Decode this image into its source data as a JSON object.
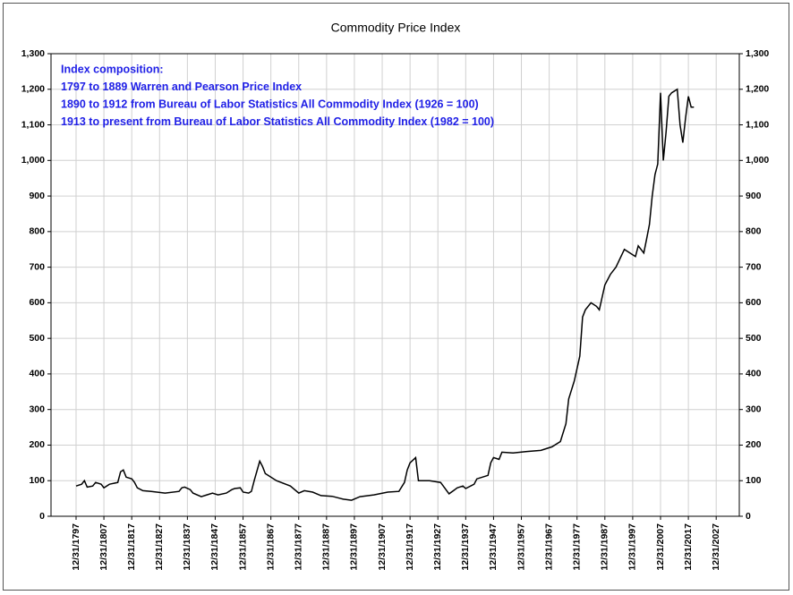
{
  "chart_data": {
    "type": "line",
    "title": "Commodity Price Index",
    "annotations": [
      "Index composition:",
      "1797 to 1889  Warren and Pearson Price Index",
      "1890 to 1912 from Bureau of Labor Statistics All Commodity Index (1926 = 100)",
      "1913 to present from  Bureau of Labor Statistics All Commodity Index  (1982 = 100)"
    ],
    "color": "#000000",
    "grid": true,
    "x": [
      1798,
      1800,
      1801,
      1802,
      1804,
      1805,
      1807,
      1808,
      1810,
      1813,
      1814,
      1815,
      1816,
      1818,
      1819,
      1820,
      1822,
      1825,
      1830,
      1835,
      1836,
      1837,
      1839,
      1840,
      1843,
      1845,
      1847,
      1849,
      1852,
      1854,
      1855,
      1857,
      1858,
      1860,
      1861,
      1862,
      1864,
      1865,
      1866,
      1870,
      1875,
      1878,
      1880,
      1883,
      1886,
      1890,
      1894,
      1897,
      1900,
      1905,
      1910,
      1914,
      1916,
      1917,
      1918,
      1920,
      1921,
      1925,
      1929,
      1932,
      1935,
      1937,
      1938,
      1941,
      1942,
      1946,
      1947,
      1948,
      1950,
      1951,
      1955,
      1960,
      1965,
      1969,
      1972,
      1974,
      1975,
      1977,
      1979,
      1980,
      1981,
      1983,
      1985,
      1986,
      1988,
      1990,
      1992,
      1995,
      1997,
      1999,
      2000,
      2002,
      2003,
      2004,
      2005,
      2006,
      2007,
      2008,
      2009,
      2010,
      2011,
      2012,
      2013,
      2014,
      2015,
      2016,
      2017,
      2018,
      2019,
      2020
    ],
    "values": [
      85,
      90,
      100,
      82,
      85,
      95,
      90,
      80,
      90,
      95,
      125,
      130,
      110,
      105,
      95,
      80,
      72,
      70,
      65,
      70,
      80,
      82,
      75,
      65,
      55,
      60,
      65,
      60,
      65,
      75,
      78,
      80,
      68,
      65,
      70,
      100,
      155,
      140,
      120,
      100,
      85,
      65,
      72,
      68,
      58,
      56,
      48,
      45,
      55,
      60,
      68,
      70,
      95,
      130,
      150,
      165,
      100,
      100,
      95,
      63,
      80,
      85,
      78,
      90,
      105,
      115,
      150,
      165,
      160,
      180,
      178,
      182,
      185,
      195,
      210,
      260,
      330,
      380,
      450,
      560,
      580,
      600,
      590,
      580,
      650,
      680,
      700,
      750,
      740,
      730,
      760,
      740,
      780,
      820,
      900,
      960,
      990,
      1190,
      1000,
      1080,
      1180,
      1190,
      1195,
      1200,
      1100,
      1050,
      1120,
      1180,
      1150,
      1150
    ],
    "xlim": [
      1789,
      2036.3
    ],
    "xticks": [
      {
        "value": 1798,
        "label": "12/31/1797"
      },
      {
        "value": 1808,
        "label": "12/31/1807"
      },
      {
        "value": 1818,
        "label": "12/31/1817"
      },
      {
        "value": 1828,
        "label": "12/31/1827"
      },
      {
        "value": 1838,
        "label": "12/31/1837"
      },
      {
        "value": 1848,
        "label": "12/31/1847"
      },
      {
        "value": 1858,
        "label": "12/31/1857"
      },
      {
        "value": 1868,
        "label": "12/31/1867"
      },
      {
        "value": 1878,
        "label": "12/31/1877"
      },
      {
        "value": 1888,
        "label": "12/31/1887"
      },
      {
        "value": 1898,
        "label": "12/31/1897"
      },
      {
        "value": 1908,
        "label": "12/31/1907"
      },
      {
        "value": 1918,
        "label": "12/31/1917"
      },
      {
        "value": 1928,
        "label": "12/31/1927"
      },
      {
        "value": 1938,
        "label": "12/31/1937"
      },
      {
        "value": 1948,
        "label": "12/31/1947"
      },
      {
        "value": 1958,
        "label": "12/31/1957"
      },
      {
        "value": 1968,
        "label": "12/31/1967"
      },
      {
        "value": 1978,
        "label": "12/31/1977"
      },
      {
        "value": 1988,
        "label": "12/31/1987"
      },
      {
        "value": 1998,
        "label": "12/31/1997"
      },
      {
        "value": 2008,
        "label": "12/31/2007"
      },
      {
        "value": 2018,
        "label": "12/31/2017"
      },
      {
        "value": 2028,
        "label": "12/31/2027"
      }
    ],
    "ylim": [
      0,
      1300
    ],
    "yticks": [
      0,
      100,
      200,
      300,
      400,
      500,
      600,
      700,
      800,
      900,
      {
        "value": 1000,
        "label": "1,000"
      },
      {
        "value": 1100,
        "label": "1,100"
      },
      {
        "value": 1200,
        "label": "1,200"
      },
      {
        "value": 1300,
        "label": "1,300"
      }
    ],
    "y2lim": [
      0,
      1300
    ],
    "y2ticks": [
      0,
      100,
      200,
      300,
      400,
      500,
      600,
      700,
      800,
      900,
      {
        "value": 1000,
        "label": "1,000"
      },
      {
        "value": 1100,
        "label": "1,100"
      },
      {
        "value": 1200,
        "label": "1,200"
      },
      {
        "value": 1300,
        "label": "1,300"
      }
    ]
  }
}
